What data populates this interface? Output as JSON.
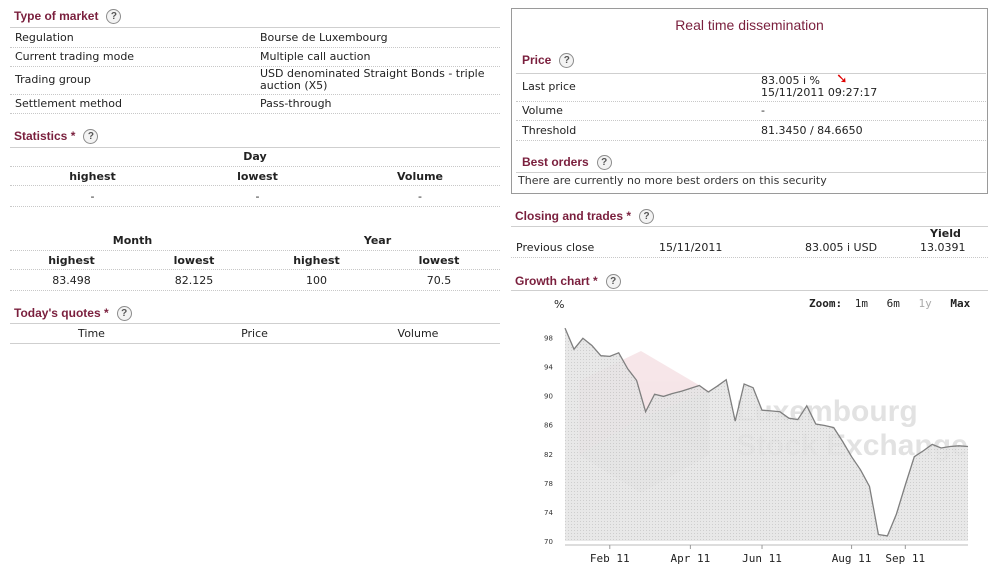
{
  "type_of_market": {
    "title": "Type of market",
    "help": "?",
    "rows": [
      {
        "label": "Regulation",
        "value": "Bourse de Luxembourg"
      },
      {
        "label": "Current trading mode",
        "value": "Multiple call auction"
      },
      {
        "label": "Trading group",
        "value": "USD denominated Straight Bonds - triple auction (X5)"
      },
      {
        "label": "Settlement method",
        "value": "Pass-through"
      }
    ]
  },
  "statistics": {
    "title": "Statistics",
    "star": "*",
    "help": "?",
    "day": {
      "header": "Day",
      "columns": [
        "highest",
        "lowest",
        "Volume"
      ],
      "values": [
        "-",
        "-",
        "-"
      ]
    },
    "month_header": "Month",
    "year_header": "Year",
    "columns2": [
      "highest",
      "lowest",
      "highest",
      "lowest"
    ],
    "values2": [
      "83.498",
      "82.125",
      "100",
      "70.5"
    ]
  },
  "todays_quotes": {
    "title": "Today's quotes",
    "star": "*",
    "help": "?",
    "columns": [
      "Time",
      "Price",
      "Volume"
    ]
  },
  "realtime": {
    "title": "Real time dissemination",
    "price_title": "Price",
    "help": "?",
    "last_price_label": "Last price",
    "last_price_value": "83.005 i  %",
    "last_price_time": "15/11/2011 09:27:17",
    "arrow": "➘",
    "volume_label": "Volume",
    "volume_value": "-",
    "threshold_label": "Threshold",
    "threshold_value": "81.3450 / 84.6650",
    "best_orders_title": "Best orders",
    "best_orders_text": "There are currently no more best orders on this security"
  },
  "closing": {
    "title": "Closing and trades",
    "star": "*",
    "help": "?",
    "yield_header": "Yield",
    "row": {
      "label": "Previous close",
      "date": "15/11/2011",
      "price": "83.005 i USD",
      "yield": "13.0391"
    }
  },
  "growth": {
    "title": "Growth chart",
    "star": "*",
    "help": "?",
    "zoom_label": "Zoom:",
    "zoom_options": [
      "1m",
      "6m",
      "1y",
      "Max"
    ],
    "watermark_line1": "Luxembourg",
    "watermark_line2": "Stock Exchange"
  },
  "chart_data": {
    "type": "area",
    "ylabel": "%",
    "ylim": [
      70,
      100
    ],
    "yticks": [
      70,
      74,
      78,
      82,
      86,
      90,
      94,
      98
    ],
    "x_tick_labels": [
      "Feb 11",
      "Apr 11",
      "Jun 11",
      "Aug 11",
      "Sep 11"
    ],
    "colors": {
      "fill": "#d9d9d9",
      "line": "#7f7f7f"
    },
    "x": [
      "2011-01-03",
      "2011-01-10",
      "2011-01-17",
      "2011-01-24",
      "2011-01-31",
      "2011-02-07",
      "2011-02-14",
      "2011-02-21",
      "2011-02-28",
      "2011-03-07",
      "2011-03-14",
      "2011-03-21",
      "2011-03-28",
      "2011-04-04",
      "2011-04-11",
      "2011-04-18",
      "2011-04-25",
      "2011-05-02",
      "2011-05-09",
      "2011-05-16",
      "2011-05-23",
      "2011-05-30",
      "2011-06-06",
      "2011-06-13",
      "2011-06-20",
      "2011-06-27",
      "2011-07-04",
      "2011-07-11",
      "2011-07-18",
      "2011-07-25",
      "2011-08-01",
      "2011-08-08",
      "2011-08-15",
      "2011-08-22",
      "2011-08-29",
      "2011-09-05",
      "2011-09-12",
      "2011-09-19",
      "2011-09-26",
      "2011-10-03",
      "2011-10-10",
      "2011-10-17",
      "2011-10-24",
      "2011-10-31",
      "2011-11-07",
      "2011-11-14"
    ],
    "values": [
      99.3,
      96.4,
      97.9,
      96.9,
      95.5,
      95.4,
      95.9,
      93.7,
      92.1,
      87.8,
      90.2,
      89.9,
      90.3,
      90.6,
      91.0,
      91.4,
      90.5,
      91.3,
      92.2,
      86.5,
      91.6,
      91.1,
      88.0,
      87.9,
      87.8,
      86.9,
      86.7,
      88.6,
      86.1,
      85.9,
      85.6,
      83.7,
      81.6,
      79.8,
      77.5,
      70.9,
      70.7,
      73.7,
      77.7,
      81.6,
      82.4,
      83.3,
      82.8,
      83.0,
      83.1,
      83.0
    ]
  }
}
